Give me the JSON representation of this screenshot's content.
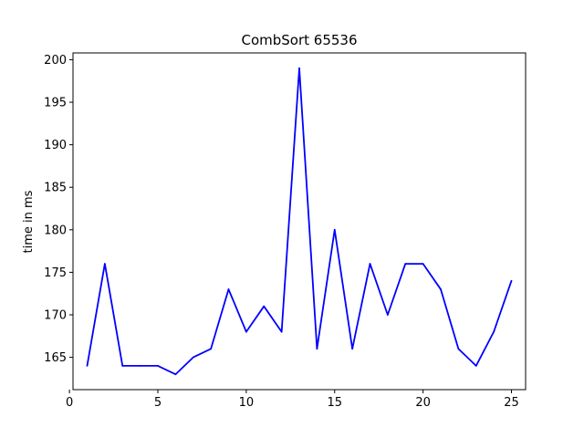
{
  "chart_data": {
    "type": "line",
    "title": "CombSort 65536",
    "xlabel": "",
    "ylabel": "time in ms",
    "xlim": [
      0.2,
      25.8
    ],
    "ylim": [
      161.2,
      200.8
    ],
    "xticks": [
      0,
      5,
      10,
      15,
      20,
      25
    ],
    "yticks": [
      165,
      170,
      175,
      180,
      185,
      190,
      195,
      200
    ],
    "grid": false,
    "series": [
      {
        "color": "#0000ff",
        "x": [
          1,
          2,
          3,
          4,
          5,
          6,
          7,
          8,
          9,
          10,
          11,
          12,
          13,
          14,
          15,
          16,
          17,
          18,
          19,
          20,
          21,
          22,
          23,
          24,
          25
        ],
        "values": [
          164,
          176,
          164,
          164,
          164,
          163,
          165,
          166,
          173,
          168,
          171,
          168,
          199,
          166,
          180,
          166,
          176,
          170,
          176,
          176,
          173,
          166,
          164,
          168,
          174
        ]
      }
    ]
  }
}
